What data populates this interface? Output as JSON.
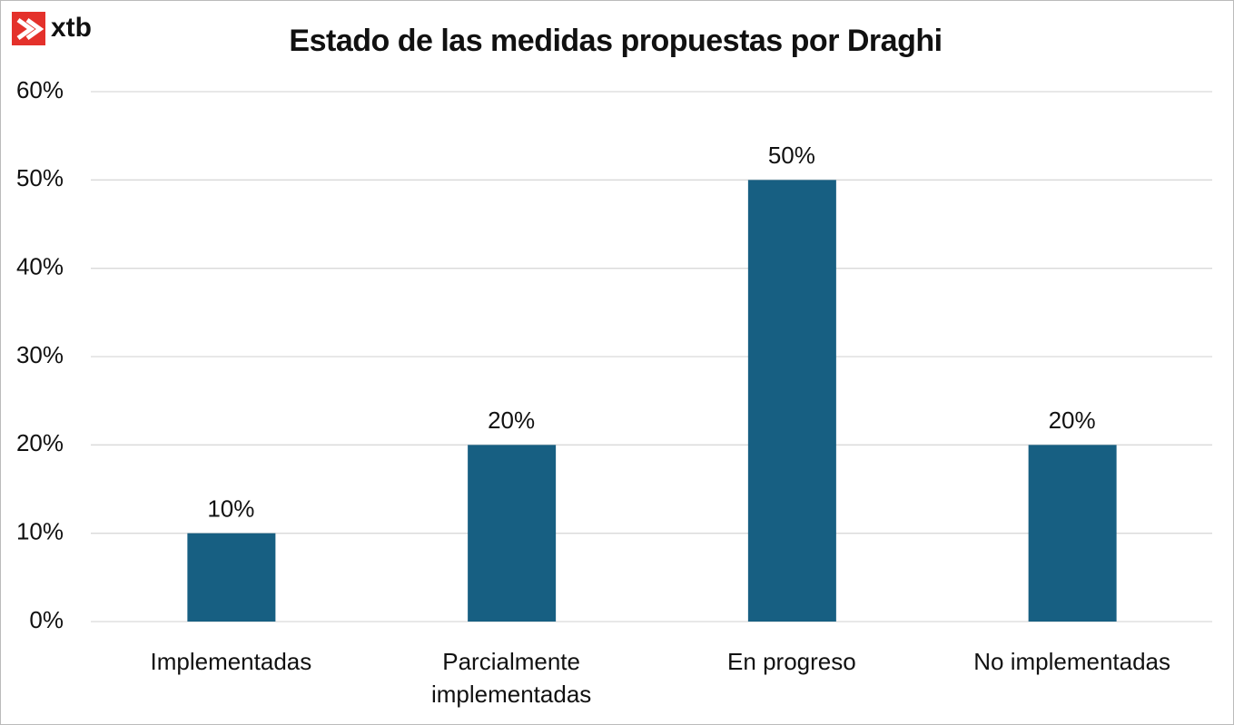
{
  "brand": "xtb",
  "chart_data": {
    "type": "bar",
    "title": "Estado de las medidas propuestas por Draghi",
    "categories": [
      "Implementadas",
      "Parcialmente implementadas",
      "En progreso",
      "No implementadas"
    ],
    "values": [
      10,
      20,
      50,
      20
    ],
    "value_labels": [
      "10%",
      "20%",
      "50%",
      "20%"
    ],
    "color": "#175f82",
    "ylim": [
      0,
      60
    ],
    "yticks": [
      {
        "value": 0,
        "label": "0%"
      },
      {
        "value": 10,
        "label": "10%"
      },
      {
        "value": 20,
        "label": "20%"
      },
      {
        "value": 30,
        "label": "30%"
      },
      {
        "value": 40,
        "label": "40%"
      },
      {
        "value": 50,
        "label": "50%"
      },
      {
        "value": 60,
        "label": "60%"
      }
    ],
    "grid": true
  }
}
